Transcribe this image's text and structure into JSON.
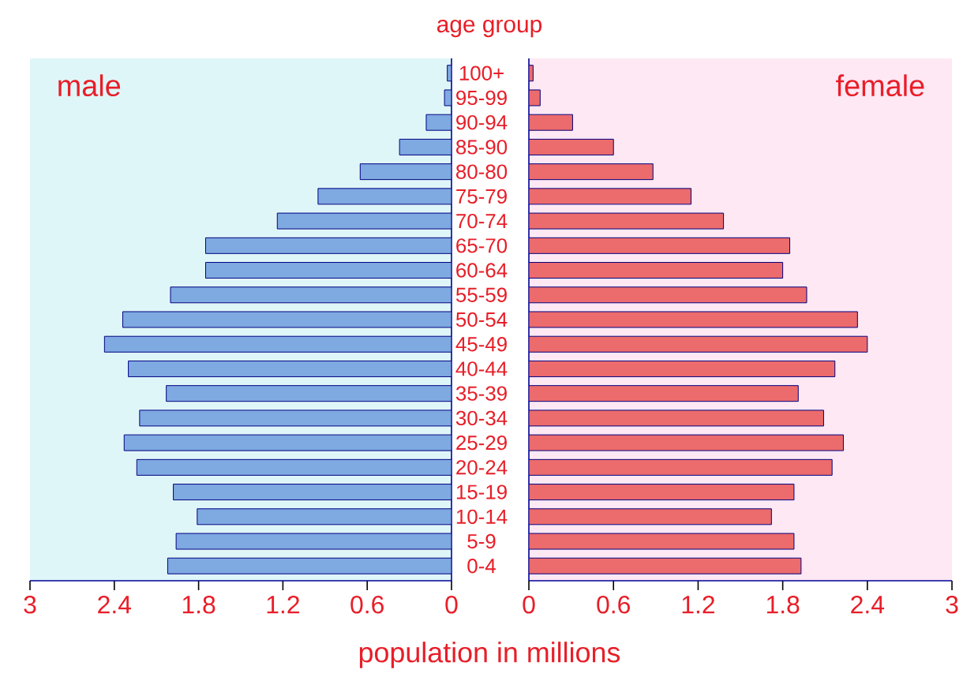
{
  "chart_data": [
    {
      "type": "bar",
      "orientation": "horizontal",
      "title": "male",
      "xlabel": "population in millions",
      "categories": [
        null,
        null,
        null,
        null,
        null,
        null,
        null,
        null,
        null,
        null,
        null,
        null,
        null,
        null,
        null,
        null,
        null,
        null,
        null,
        null,
        null
      ],
      "values": [
        0.03,
        0.05,
        0.18,
        0.37,
        0.65,
        0.95,
        1.24,
        1.75,
        1.75,
        2.0,
        2.34,
        2.47,
        2.3,
        2.03,
        2.22,
        2.33,
        2.24,
        1.98,
        1.81,
        1.96,
        2.02
      ],
      "color": "#7ea9e1",
      "xlim": [
        3,
        0
      ],
      "xticks": [
        3,
        2.4,
        1.8,
        1.2,
        0.6,
        0
      ],
      "tick_labels": "x"
    },
    {
      "type": "bar",
      "orientation": "horizontal",
      "title": "female",
      "ylabel": "age group",
      "categories": [
        "100+",
        "95-99",
        "90-94",
        "85-90",
        "80-80",
        "75-79",
        "70-74",
        "65-70",
        "60-64",
        "55-59",
        "50-54",
        "45-49",
        "40-44",
        "35-39",
        "30-34",
        "25-29",
        "20-24",
        "15-19",
        "10-14",
        "5-9",
        "0-4"
      ],
      "values": [
        0.03,
        0.08,
        0.31,
        0.6,
        0.88,
        1.15,
        1.38,
        1.85,
        1.8,
        1.97,
        2.33,
        2.4,
        2.17,
        1.91,
        2.09,
        2.23,
        2.15,
        1.88,
        1.72,
        1.88,
        1.93
      ],
      "color": "#ec6b6c",
      "xlim": [
        0,
        3
      ],
      "xticks": [
        0,
        0.6,
        1.2,
        1.8,
        2.4,
        3
      ]
    }
  ]
}
